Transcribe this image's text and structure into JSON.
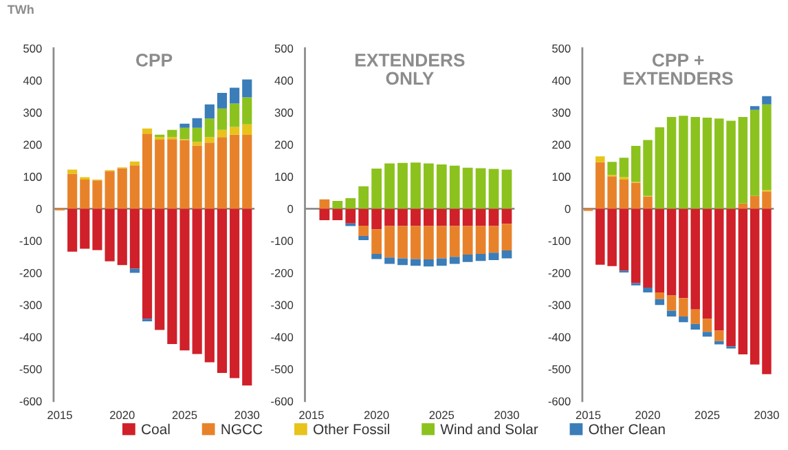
{
  "chart_data": [
    {
      "type": "bar",
      "title": "CPP",
      "ylabel": "TWh",
      "stacked": true,
      "legend": "bottom",
      "x": [
        2015,
        2016,
        2017,
        2018,
        2019,
        2020,
        2021,
        2022,
        2023,
        2024,
        2025,
        2026,
        2027,
        2028,
        2029,
        2030
      ],
      "xlim": [
        2014.5,
        2030.6
      ],
      "xticks": [
        2015,
        2020,
        2025,
        2030
      ],
      "ylim": [
        -600,
        500
      ],
      "yticks": [
        -600,
        -500,
        -400,
        -300,
        -200,
        -100,
        0,
        100,
        200,
        300,
        400,
        500
      ],
      "series": [
        {
          "name": "Coal",
          "color": "#d0202a",
          "values": [
            0,
            -134,
            -125,
            -129,
            -164,
            -176,
            -187,
            -343,
            -378,
            -422,
            -442,
            -453,
            -479,
            -512,
            -528,
            -551
          ]
        },
        {
          "name": "NGCC",
          "color": "#e8822a",
          "values": [
            -5,
            109,
            91,
            88,
            117,
            126,
            135,
            234,
            215,
            217,
            214,
            197,
            206,
            223,
            231,
            230
          ]
        },
        {
          "name": "Other Fossil",
          "color": "#e8c31a",
          "values": [
            0,
            13,
            7,
            3,
            3,
            3,
            12,
            16,
            8,
            6,
            3,
            11,
            17,
            23,
            24,
            33
          ]
        },
        {
          "name": "Wind and Solar",
          "color": "#8cc21e",
          "values": [
            0,
            0,
            0,
            0,
            0,
            0,
            0,
            0,
            8,
            23,
            35,
            44,
            58,
            66,
            73,
            84
          ]
        },
        {
          "name": "Other Clean",
          "color": "#3a7db8",
          "values": [
            0,
            0,
            0,
            0,
            0,
            0,
            -13,
            -8,
            0,
            0,
            13,
            30,
            44,
            49,
            49,
            56
          ]
        }
      ]
    },
    {
      "type": "bar",
      "title": "EXTENDERS\nONLY",
      "stacked": true,
      "x": [
        2015,
        2016,
        2017,
        2018,
        2019,
        2020,
        2021,
        2022,
        2023,
        2024,
        2025,
        2026,
        2027,
        2028,
        2029,
        2030
      ],
      "xlim": [
        2014.5,
        2030.6
      ],
      "xticks": [
        2015,
        2020,
        2025,
        2030
      ],
      "ylim": [
        -600,
        500
      ],
      "yticks": [
        -600,
        -500,
        -400,
        -300,
        -200,
        -100,
        0,
        100,
        200,
        300,
        400,
        500
      ],
      "series": [
        {
          "color": "#d0202a",
          "values": [
            0,
            -36,
            -36,
            -46,
            -53,
            -64,
            -54,
            -54,
            -54,
            -54,
            -54,
            -54,
            -54,
            -54,
            -54,
            -47
          ]
        },
        {
          "color": "#e8822a",
          "values": [
            0,
            29,
            0,
            0,
            -32,
            -77,
            -98,
            -101,
            -103,
            -104,
            -101,
            -96,
            -89,
            -87,
            -83,
            -83
          ]
        },
        {
          "color": "#e8c31a",
          "values": [
            0,
            0,
            0,
            0,
            0,
            0,
            0,
            0,
            0,
            0,
            0,
            0,
            0,
            0,
            0,
            0
          ]
        },
        {
          "color": "#8cc21e",
          "values": [
            0,
            0,
            24,
            33,
            70,
            125,
            141,
            143,
            144,
            141,
            138,
            134,
            128,
            126,
            124,
            122
          ]
        },
        {
          "color": "#3a7db8",
          "values": [
            0,
            0,
            0,
            -8,
            -13,
            -16,
            -20,
            -21,
            -21,
            -22,
            -23,
            -22,
            -23,
            -22,
            -23,
            -25
          ]
        }
      ]
    },
    {
      "type": "bar",
      "title": "CPP +\nEXTENDERS",
      "stacked": true,
      "x": [
        2015,
        2016,
        2017,
        2018,
        2019,
        2020,
        2021,
        2022,
        2023,
        2024,
        2025,
        2026,
        2027,
        2028,
        2029,
        2030
      ],
      "xlim": [
        2014.5,
        2030.6
      ],
      "xticks": [
        2015,
        2020,
        2025,
        2030
      ],
      "ylim": [
        -600,
        500
      ],
      "yticks": [
        -600,
        -500,
        -400,
        -300,
        -200,
        -100,
        0,
        100,
        200,
        300,
        400,
        500
      ],
      "series": [
        {
          "color": "#d0202a",
          "values": [
            0,
            -175,
            -179,
            -193,
            -232,
            -246,
            -261,
            -271,
            -279,
            -314,
            -343,
            -380,
            -429,
            -454,
            -486,
            -516
          ]
        },
        {
          "color": "#e8822a",
          "values": [
            -7,
            145,
            101,
            91,
            81,
            38,
            -21,
            -47,
            -57,
            -45,
            -41,
            -33,
            0,
            16,
            40,
            54
          ]
        },
        {
          "color": "#e8c31a",
          "values": [
            0,
            18,
            4,
            7,
            2,
            2,
            0,
            0,
            0,
            0,
            0,
            0,
            0,
            0,
            0,
            4
          ]
        },
        {
          "color": "#8cc21e",
          "values": [
            0,
            0,
            41,
            61,
            113,
            174,
            254,
            286,
            290,
            286,
            284,
            281,
            274,
            270,
            268,
            267
          ]
        },
        {
          "color": "#3a7db8",
          "values": [
            0,
            0,
            0,
            -6,
            -7,
            -15,
            -18,
            -18,
            -18,
            -18,
            -15,
            -10,
            -7,
            0,
            12,
            26
          ]
        }
      ]
    }
  ]
}
